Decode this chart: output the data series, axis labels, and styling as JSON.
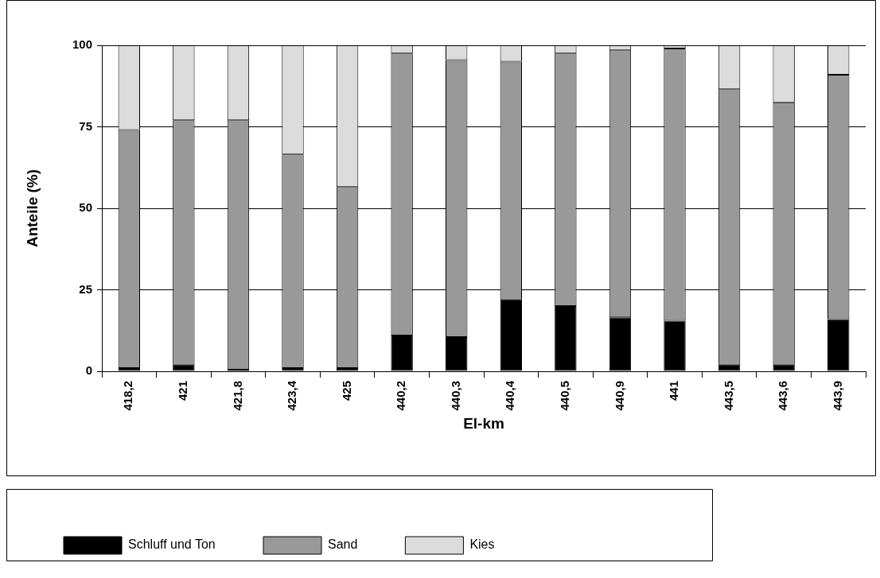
{
  "chart_data": {
    "type": "bar",
    "stacked": true,
    "xlabel": "El-km",
    "ylabel": "Anteile (%)",
    "categories": [
      "418,2",
      "421",
      "421,8",
      "423,4",
      "425",
      "440,2",
      "440,3",
      "440,4",
      "440,5",
      "440,9",
      "441",
      "443,5",
      "443,6",
      "443,9"
    ],
    "series": [
      {
        "name": "Schluff und Ton",
        "color": "#000000",
        "values": [
          1,
          2,
          0.5,
          1,
          1,
          11,
          10.5,
          22,
          20,
          16.5,
          15.5,
          2,
          2,
          16
        ]
      },
      {
        "name": "Sand",
        "color": "#999999",
        "values": [
          73,
          75,
          76.5,
          65.5,
          55.5,
          86.5,
          85,
          73,
          77.5,
          82,
          83.5,
          84.5,
          80.5,
          75
        ]
      },
      {
        "name": "Kies",
        "color": "#dcdcdc",
        "values": [
          26,
          23,
          23,
          33.5,
          43.5,
          2.5,
          4.5,
          5,
          2.5,
          1.5,
          1,
          13.5,
          17.5,
          9
        ]
      }
    ],
    "ylim": [
      0,
      100
    ],
    "yticks": [
      0,
      25,
      50,
      75,
      100
    ],
    "grid": "y",
    "legend": "bottom left"
  }
}
